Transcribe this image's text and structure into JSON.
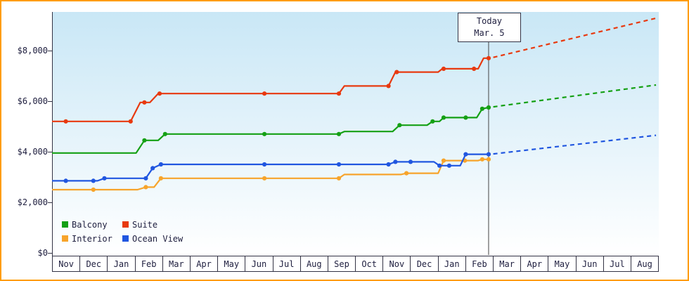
{
  "page": {
    "frame_border_color": "#ff9c00",
    "axis_color": "#333344",
    "text_color": "#202040",
    "today_line_color": "#444444"
  },
  "legend": {
    "items": [
      {
        "label": "Balcony",
        "color": "#14a014"
      },
      {
        "label": "Suite",
        "color": "#e8390f"
      },
      {
        "label": "Interior",
        "color": "#f7a42b"
      },
      {
        "label": "Ocean View",
        "color": "#2056e0"
      }
    ]
  },
  "chart_data": {
    "type": "line",
    "title": "",
    "xlabel": "",
    "ylabel": "",
    "grid": false,
    "legend_position": "bottom-left",
    "x_categories": [
      "Nov",
      "Dec",
      "Jan",
      "Feb",
      "Mar",
      "Apr",
      "May",
      "Jun",
      "Jul",
      "Aug",
      "Sep",
      "Oct",
      "Nov",
      "Dec",
      "Jan",
      "Feb",
      "Mar",
      "Apr",
      "May",
      "Jun",
      "Jul",
      "Aug"
    ],
    "y_tick_labels": [
      "$0",
      "$2,000",
      "$4,000",
      "$6,000",
      "$8,000"
    ],
    "y_tick_values": [
      0,
      2000,
      4000,
      6000,
      8000
    ],
    "ylim": [
      0,
      9600
    ],
    "today_marker": {
      "line1": "Today",
      "line2": "Mar. 5",
      "x": 15.33
    },
    "series": [
      {
        "name": "Interior",
        "color": "#f7a42b",
        "points": [
          [
            -0.5,
            2500
          ],
          [
            2.6,
            2500
          ],
          [
            2.9,
            2600
          ],
          [
            3.2,
            2600
          ],
          [
            3.45,
            2950
          ],
          [
            9.9,
            2950
          ],
          [
            10.1,
            3100
          ],
          [
            12.15,
            3100
          ],
          [
            12.35,
            3150
          ],
          [
            13.5,
            3150
          ],
          [
            13.7,
            3650
          ],
          [
            14.95,
            3650
          ],
          [
            15.1,
            3700
          ],
          [
            15.33,
            3700
          ]
        ],
        "markers": [
          [
            1.0,
            2500
          ],
          [
            2.9,
            2600
          ],
          [
            3.45,
            2950
          ],
          [
            7.2,
            2950
          ],
          [
            9.9,
            2950
          ],
          [
            12.35,
            3150
          ],
          [
            13.7,
            3650
          ],
          [
            14.47,
            3650
          ],
          [
            15.1,
            3700
          ],
          [
            15.33,
            3700
          ]
        ],
        "forecast": null
      },
      {
        "name": "Ocean View",
        "color": "#2056e0",
        "points": [
          [
            -0.5,
            2850
          ],
          [
            1.15,
            2850
          ],
          [
            1.4,
            2950
          ],
          [
            2.9,
            2950
          ],
          [
            3.15,
            3350
          ],
          [
            3.45,
            3500
          ],
          [
            11.7,
            3500
          ],
          [
            11.95,
            3600
          ],
          [
            13.35,
            3600
          ],
          [
            13.55,
            3450
          ],
          [
            14.3,
            3450
          ],
          [
            14.5,
            3900
          ],
          [
            15.33,
            3900
          ]
        ],
        "markers": [
          [
            0,
            2850
          ],
          [
            1.0,
            2850
          ],
          [
            1.4,
            2950
          ],
          [
            2.9,
            2950
          ],
          [
            3.15,
            3350
          ],
          [
            3.45,
            3500
          ],
          [
            7.2,
            3500
          ],
          [
            9.9,
            3500
          ],
          [
            11.7,
            3500
          ],
          [
            11.95,
            3600
          ],
          [
            12.5,
            3600
          ],
          [
            13.55,
            3450
          ],
          [
            13.9,
            3450
          ],
          [
            14.5,
            3900
          ],
          [
            15.33,
            3900
          ]
        ],
        "forecast": [
          [
            15.5,
            3915
          ],
          [
            21.4,
            4650
          ]
        ]
      },
      {
        "name": "Balcony",
        "color": "#14a014",
        "points": [
          [
            -0.5,
            3950
          ],
          [
            2.55,
            3950
          ],
          [
            2.85,
            4450
          ],
          [
            3.35,
            4450
          ],
          [
            3.6,
            4700
          ],
          [
            9.9,
            4700
          ],
          [
            10.1,
            4800
          ],
          [
            11.85,
            4800
          ],
          [
            12.1,
            5050
          ],
          [
            13.1,
            5050
          ],
          [
            13.3,
            5200
          ],
          [
            13.55,
            5200
          ],
          [
            13.7,
            5350
          ],
          [
            14.9,
            5350
          ],
          [
            15.1,
            5700
          ],
          [
            15.33,
            5750
          ]
        ],
        "markers": [
          [
            2.85,
            4450
          ],
          [
            3.6,
            4700
          ],
          [
            7.2,
            4700
          ],
          [
            9.9,
            4700
          ],
          [
            12.1,
            5050
          ],
          [
            13.3,
            5200
          ],
          [
            13.7,
            5350
          ],
          [
            14.5,
            5350
          ],
          [
            15.1,
            5700
          ],
          [
            15.33,
            5750
          ]
        ],
        "forecast": [
          [
            15.5,
            5775
          ],
          [
            21.4,
            6640
          ]
        ]
      },
      {
        "name": "Suite",
        "color": "#e8390f",
        "points": [
          [
            -0.5,
            5200
          ],
          [
            2.35,
            5200
          ],
          [
            2.7,
            5950
          ],
          [
            3.05,
            5950
          ],
          [
            3.35,
            6300
          ],
          [
            9.9,
            6300
          ],
          [
            10.1,
            6600
          ],
          [
            11.7,
            6600
          ],
          [
            11.95,
            7150
          ],
          [
            13.5,
            7150
          ],
          [
            13.65,
            7280
          ],
          [
            14.95,
            7280
          ],
          [
            15.15,
            7700
          ],
          [
            15.33,
            7700
          ]
        ],
        "markers": [
          [
            0,
            5200
          ],
          [
            2.35,
            5200
          ],
          [
            2.85,
            5950
          ],
          [
            3.4,
            6300
          ],
          [
            7.2,
            6300
          ],
          [
            9.9,
            6300
          ],
          [
            11.7,
            6600
          ],
          [
            12.0,
            7150
          ],
          [
            13.7,
            7280
          ],
          [
            14.8,
            7280
          ],
          [
            15.33,
            7700
          ]
        ],
        "forecast": [
          [
            15.5,
            7730
          ],
          [
            21.4,
            9280
          ]
        ]
      }
    ]
  }
}
